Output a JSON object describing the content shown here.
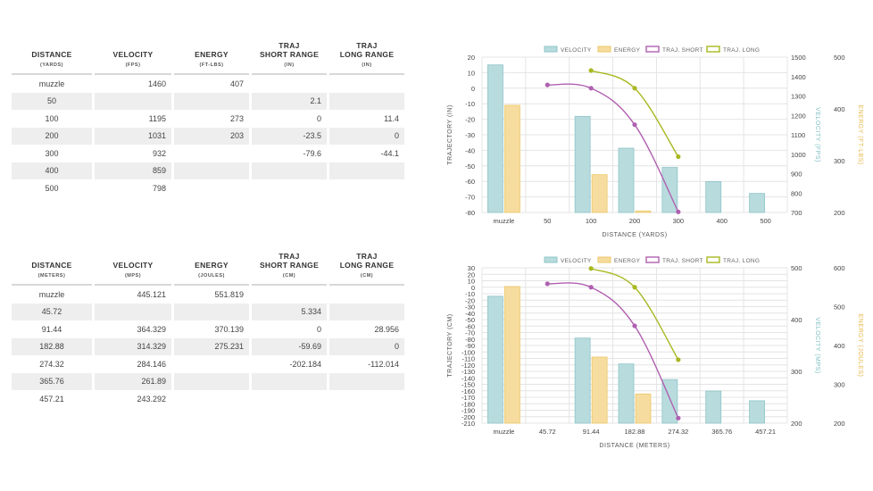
{
  "tables": [
    {
      "columns": [
        {
          "label": "DISTANCE",
          "unit": "(YARDS)"
        },
        {
          "label": "VELOCITY",
          "unit": "(FPS)"
        },
        {
          "label": "ENERGY",
          "unit": "(FT-LBS)"
        },
        {
          "label": "TRAJ\nSHORT RANGE",
          "unit": "(IN)"
        },
        {
          "label": "TRAJ\nLONG RANGE",
          "unit": "(IN)"
        }
      ],
      "rows": [
        [
          "muzzle",
          "1460",
          "407",
          "",
          ""
        ],
        [
          "50",
          "",
          "",
          "2.1",
          ""
        ],
        [
          "100",
          "1195",
          "273",
          "0",
          "11.4"
        ],
        [
          "200",
          "1031",
          "203",
          "-23.5",
          "0"
        ],
        [
          "300",
          "932",
          "",
          "-79.6",
          "-44.1"
        ],
        [
          "400",
          "859",
          "",
          "",
          ""
        ],
        [
          "500",
          "798",
          "",
          "",
          ""
        ]
      ]
    },
    {
      "columns": [
        {
          "label": "DISTANCE",
          "unit": "(METERS)"
        },
        {
          "label": "VELOCITY",
          "unit": "(MPS)"
        },
        {
          "label": "ENERGY",
          "unit": "(JOULES)"
        },
        {
          "label": "TRAJ\nSHORT RANGE",
          "unit": "(CM)"
        },
        {
          "label": "TRAJ\nLONG RANGE",
          "unit": "(CM)"
        }
      ],
      "rows": [
        [
          "muzzle",
          "445.121",
          "551.819",
          "",
          ""
        ],
        [
          "45.72",
          "",
          "",
          "5.334",
          ""
        ],
        [
          "91.44",
          "364.329",
          "370.139",
          "0",
          "28.956"
        ],
        [
          "182.88",
          "314.329",
          "275.231",
          "-59.69",
          "0"
        ],
        [
          "274.32",
          "284.146",
          "",
          "-202.184",
          "-112.014"
        ],
        [
          "365.76",
          "261.89",
          "",
          "",
          ""
        ],
        [
          "457.21",
          "243.292",
          "",
          "",
          ""
        ]
      ]
    }
  ],
  "colors": {
    "velocity_fill": "#b8dbdd",
    "velocity_stroke": "#8ec4c8",
    "energy_fill": "#f6dc9e",
    "energy_stroke": "#ecc86a",
    "traj_short": "#b060b0",
    "traj_long": "#a8b820",
    "velocity_axis": "#7fbfc4",
    "energy_axis": "#e8b84a",
    "grid": "#e4e4e4",
    "axis_text": "#444444"
  },
  "chart_data": [
    {
      "type": "bar",
      "categories": [
        "muzzle",
        "50",
        "100",
        "200",
        "300",
        "400",
        "500"
      ],
      "series": [
        {
          "name": "VELOCITY",
          "kind": "bar",
          "axis": "velocity",
          "values": [
            1460,
            null,
            1195,
            1031,
            932,
            859,
            798
          ]
        },
        {
          "name": "ENERGY",
          "kind": "bar",
          "axis": "energy",
          "values": [
            407,
            null,
            273,
            203,
            null,
            null,
            null
          ]
        },
        {
          "name": "TRAJ. SHORT",
          "kind": "line",
          "axis": "trajectory",
          "values": [
            null,
            2.1,
            0,
            -23.5,
            -79.6,
            null,
            null
          ]
        },
        {
          "name": "TRAJ. LONG",
          "kind": "line",
          "axis": "trajectory",
          "values": [
            null,
            null,
            11.4,
            0,
            -44.1,
            null,
            null
          ]
        }
      ],
      "axes": {
        "trajectory": {
          "label": "TRAJECTORY (IN)",
          "min": -80,
          "max": 20,
          "step": 10
        },
        "velocity": {
          "label": "VELOCITY (FPS)",
          "min": 700,
          "max": 1500,
          "step": 100
        },
        "energy": {
          "label": "ENERGY (FT-LBS)",
          "min": 200,
          "max": 500,
          "step": 100
        }
      },
      "xlabel": "DISTANCE (YARDS)"
    },
    {
      "type": "bar",
      "categories": [
        "muzzle",
        "45.72",
        "91.44",
        "182.88",
        "274.32",
        "365.76",
        "457.21"
      ],
      "series": [
        {
          "name": "VELOCITY",
          "kind": "bar",
          "axis": "velocity",
          "values": [
            445.121,
            null,
            364.329,
            314.329,
            284.146,
            261.89,
            243.292
          ]
        },
        {
          "name": "ENERGY",
          "kind": "bar",
          "axis": "energy",
          "values": [
            551.819,
            null,
            370.139,
            275.231,
            null,
            null,
            null
          ]
        },
        {
          "name": "TRAJ. SHORT",
          "kind": "line",
          "axis": "trajectory",
          "values": [
            null,
            5.334,
            0,
            -59.69,
            -202.184,
            null,
            null
          ]
        },
        {
          "name": "TRAJ. LONG",
          "kind": "line",
          "axis": "trajectory",
          "values": [
            null,
            null,
            28.956,
            0,
            -112.014,
            null,
            null
          ]
        }
      ],
      "axes": {
        "trajectory": {
          "label": "TRAJECTORY (CM)",
          "min": -210,
          "max": 30,
          "step": 10
        },
        "velocity": {
          "label": "VELOCITY (MPS)",
          "min": 200,
          "max": 500,
          "step": 100
        },
        "energy": {
          "label": "ENERGY (JOULES)",
          "min": 200,
          "max": 600,
          "step": 100
        }
      },
      "xlabel": "DISTANCE (METERS)"
    }
  ]
}
